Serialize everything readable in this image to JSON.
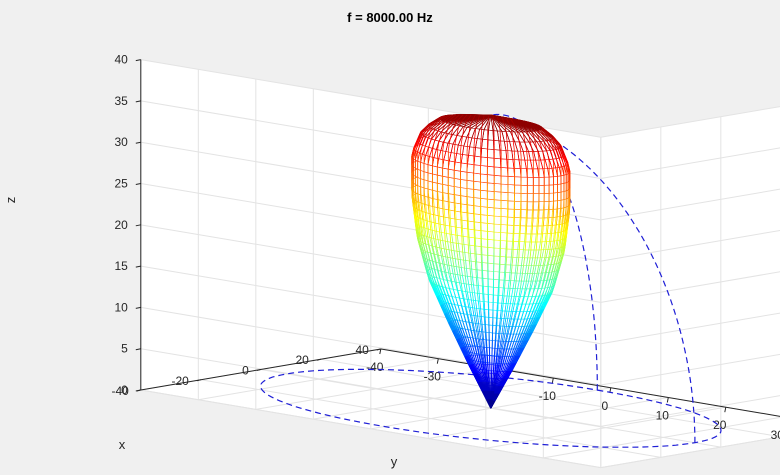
{
  "chart_data": {
    "type": "surface",
    "title": "f = 8000.00 Hz",
    "xlabel": "x",
    "ylabel": "y",
    "zlabel": "z",
    "xlim": [
      -40,
      40
    ],
    "ylim": [
      -40,
      40
    ],
    "zlim": [
      0,
      40
    ],
    "x_ticks": [
      "-40",
      "-20",
      "0",
      "20",
      "40"
    ],
    "y_ticks": [
      "-40",
      "-30",
      "-20",
      "-10",
      "0",
      "10",
      "20",
      "30",
      "40"
    ],
    "z_ticks": [
      "0",
      "5",
      "10",
      "15",
      "20",
      "25",
      "30",
      "35",
      "40"
    ],
    "grid": true,
    "colormap": "jet",
    "reference_circle_color": "#1f1fd6",
    "surface": {
      "description_shape": "directivity lobe along +z",
      "max_z": 35.5,
      "profile": [
        {
          "z": 0,
          "r": 0
        },
        {
          "z": 5,
          "r": 3.4
        },
        {
          "z": 10,
          "r": 6.6
        },
        {
          "z": 15,
          "r": 9.6
        },
        {
          "z": 20,
          "r": 11.4
        },
        {
          "z": 25,
          "r": 12.2
        },
        {
          "z": 30,
          "r": 12.2
        },
        {
          "z": 33,
          "r": 10.6
        },
        {
          "z": 34.8,
          "r": 7.4
        },
        {
          "z": 35.5,
          "r": 0
        }
      ]
    },
    "reference_radius": 35.5
  }
}
